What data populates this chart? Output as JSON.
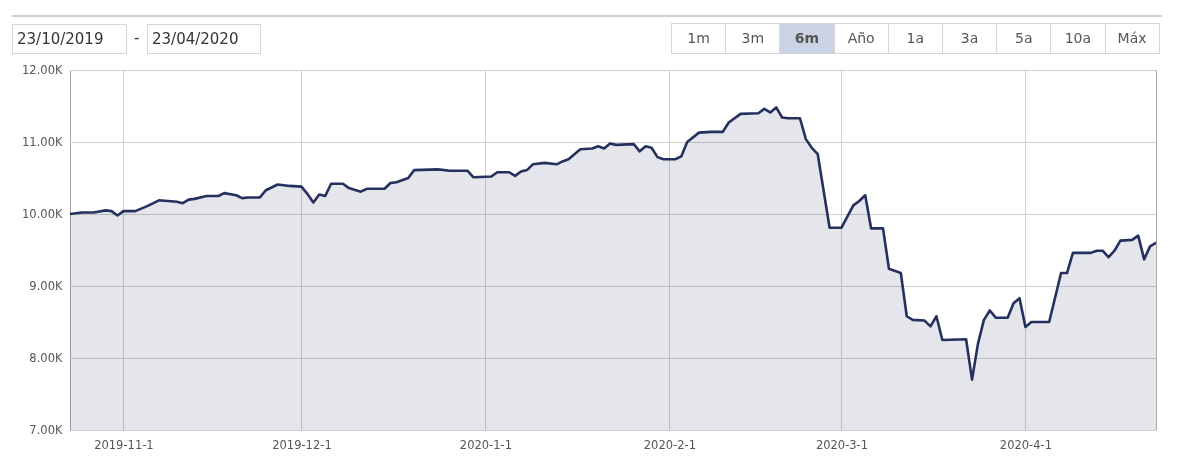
{
  "chart_data": {
    "type": "area",
    "x": [
      "2019-10-23",
      "2019-10-25",
      "2019-10-27",
      "2019-10-29",
      "2019-10-30",
      "2019-10-31",
      "2019-11-01",
      "2019-11-03",
      "2019-11-05",
      "2019-11-07",
      "2019-11-10",
      "2019-11-11",
      "2019-11-12",
      "2019-11-13",
      "2019-11-15",
      "2019-11-17",
      "2019-11-18",
      "2019-11-20",
      "2019-11-21",
      "2019-11-22",
      "2019-11-24",
      "2019-11-25",
      "2019-11-27",
      "2019-11-29",
      "2019-12-01",
      "2019-12-02",
      "2019-12-03",
      "2019-12-04",
      "2019-12-05",
      "2019-12-06",
      "2019-12-08",
      "2019-12-09",
      "2019-12-11",
      "2019-12-12",
      "2019-12-15",
      "2019-12-16",
      "2019-12-17",
      "2019-12-19",
      "2019-12-20",
      "2019-12-24",
      "2019-12-26",
      "2019-12-29",
      "2019-12-30",
      "2020-01-02",
      "2020-01-03",
      "2020-01-05",
      "2020-01-06",
      "2020-01-07",
      "2020-01-08",
      "2020-01-09",
      "2020-01-11",
      "2020-01-13",
      "2020-01-14",
      "2020-01-15",
      "2020-01-17",
      "2020-01-19",
      "2020-01-20",
      "2020-01-21",
      "2020-01-22",
      "2020-01-23",
      "2020-01-26",
      "2020-01-27",
      "2020-01-28",
      "2020-01-29",
      "2020-01-30",
      "2020-01-31",
      "2020-02-02",
      "2020-02-03",
      "2020-02-04",
      "2020-02-06",
      "2020-02-08",
      "2020-02-10",
      "2020-02-11",
      "2020-02-13",
      "2020-02-16",
      "2020-02-17",
      "2020-02-18",
      "2020-02-19",
      "2020-02-20",
      "2020-02-21",
      "2020-02-23",
      "2020-02-24",
      "2020-02-25",
      "2020-02-26",
      "2020-02-28",
      "2020-03-01",
      "2020-03-03",
      "2020-03-04",
      "2020-03-05",
      "2020-03-06",
      "2020-03-08",
      "2020-03-09",
      "2020-03-11",
      "2020-03-12",
      "2020-03-13",
      "2020-03-15",
      "2020-03-16",
      "2020-03-17",
      "2020-03-18",
      "2020-03-22",
      "2020-03-23",
      "2020-03-24",
      "2020-03-25",
      "2020-03-26",
      "2020-03-27",
      "2020-03-29",
      "2020-03-30",
      "2020-03-31",
      "2020-04-01",
      "2020-04-02",
      "2020-04-05",
      "2020-04-07",
      "2020-04-08",
      "2020-04-09",
      "2020-04-12",
      "2020-04-13",
      "2020-04-14",
      "2020-04-15",
      "2020-04-16",
      "2020-04-17",
      "2020-04-19",
      "2020-04-20",
      "2020-04-21",
      "2020-04-22",
      "2020-04-23"
    ],
    "series": [
      {
        "color": "#24305e",
        "values": [
          10000,
          10020,
          10020,
          10050,
          10040,
          9980,
          10040,
          10040,
          10110,
          10190,
          10170,
          10150,
          10200,
          10210,
          10250,
          10250,
          10290,
          10260,
          10220,
          10230,
          10230,
          10330,
          10410,
          10390,
          10380,
          10280,
          10160,
          10270,
          10250,
          10420,
          10420,
          10360,
          10310,
          10350,
          10350,
          10430,
          10440,
          10500,
          10610,
          10620,
          10600,
          10600,
          10510,
          10520,
          10580,
          10580,
          10530,
          10590,
          10610,
          10690,
          10710,
          10690,
          10730,
          10760,
          10900,
          10910,
          10940,
          10910,
          10980,
          10960,
          10970,
          10870,
          10940,
          10920,
          10790,
          10760,
          10760,
          10800,
          11000,
          11130,
          11140,
          11140,
          11270,
          11390,
          11400,
          11460,
          11410,
          11480,
          11340,
          11330,
          11330,
          11040,
          10920,
          10830,
          9810,
          9810,
          10120,
          10180,
          10260,
          9800,
          9800,
          9240,
          9180,
          8580,
          8530,
          8520,
          8440,
          8580,
          8250,
          8260,
          7700,
          8200,
          8530,
          8660,
          8560,
          8560,
          8760,
          8830,
          8430,
          8500,
          8500,
          9180,
          9180,
          9460,
          9460,
          9490,
          9490,
          9400,
          9490,
          9630,
          9640,
          9700,
          9370,
          9550,
          9600
        ]
      }
    ],
    "xlim": [
      "2019-10-23",
      "2020-04-23"
    ],
    "xticks": [
      {
        "value": "2019-11-01",
        "label": "2019-11-1"
      },
      {
        "value": "2019-12-01",
        "label": "2019-12-1"
      },
      {
        "value": "2020-01-01",
        "label": "2020-1-1"
      },
      {
        "value": "2020-02-01",
        "label": "2020-2-1"
      },
      {
        "value": "2020-03-01",
        "label": "2020-3-1"
      },
      {
        "value": "2020-04-01",
        "label": "2020-4-1"
      }
    ],
    "ylim": [
      7000,
      12000
    ],
    "yticks": [
      {
        "value": 7000,
        "label": "7.00K"
      },
      {
        "value": 8000,
        "label": "8.00K"
      },
      {
        "value": 9000,
        "label": "9.00K"
      },
      {
        "value": 10000,
        "label": "10.00K"
      },
      {
        "value": 11000,
        "label": "11.00K"
      },
      {
        "value": 12000,
        "label": "12.00K"
      }
    ],
    "grid": true,
    "annotations": [
      "23/10/2019",
      "-",
      "23/04/2020",
      "1m",
      "3m",
      "6m",
      "Año",
      "1a",
      "3a",
      "5a",
      "10a",
      "Máx"
    ]
  }
}
